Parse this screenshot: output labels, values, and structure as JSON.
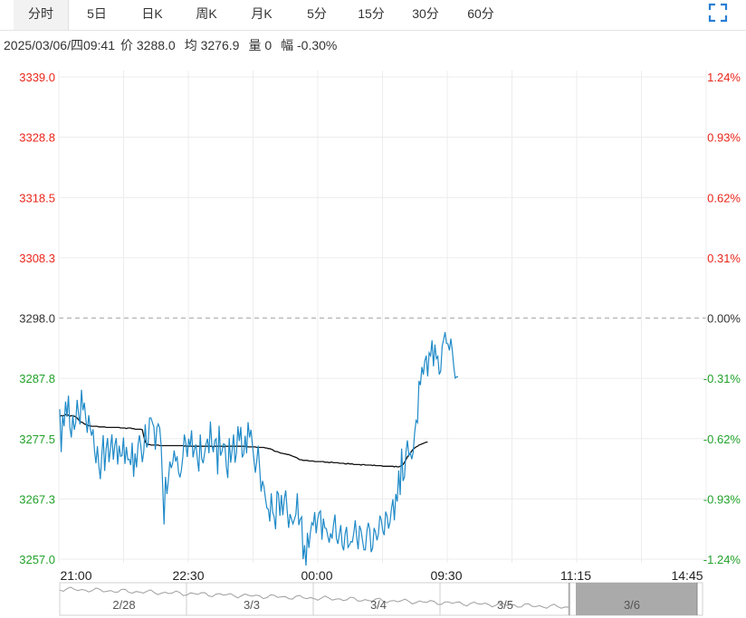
{
  "tabs": [
    {
      "label": "分时",
      "active": true
    },
    {
      "label": "5日"
    },
    {
      "label": "日K"
    },
    {
      "label": "周K"
    },
    {
      "label": "月K"
    },
    {
      "label": "5分"
    },
    {
      "label": "15分"
    },
    {
      "label": "30分"
    },
    {
      "label": "60分"
    }
  ],
  "fullscreen_icon": "expand-icon",
  "info": {
    "datetime": "2025/03/06/四09:41",
    "price": "价 3288.0",
    "avg": "均 3276.9",
    "volume": "量 0",
    "change": "幅 -0.30%"
  },
  "chart_data": {
    "type": "line",
    "prev_close": 3298.0,
    "ylim": [
      3257.0,
      3339.0
    ],
    "y_ticks": [
      "3339.0",
      "3328.8",
      "3318.5",
      "3308.3",
      "3298.0",
      "3287.8",
      "3277.5",
      "3267.3",
      "3257.0"
    ],
    "pct_ticks": [
      "1.24%",
      "0.93%",
      "0.62%",
      "0.31%",
      "0.00%",
      "-0.31%",
      "-0.62%",
      "-0.93%",
      "-1.24%"
    ],
    "x_ticks": [
      "21:00",
      "22:30",
      "00:00",
      "09:30",
      "11:15",
      "14:45"
    ],
    "session_segments": 10,
    "colors": {
      "price": "#1f8ac8",
      "avg": "#111111",
      "up": "#e8271b",
      "down": "#21a12a",
      "flat": "#333333"
    },
    "series": [
      {
        "name": "价",
        "values": [
          3282.5,
          3275.2,
          3281.4,
          3279.6,
          3283.8,
          3281.2,
          3284.8,
          3279.4,
          3277.7,
          3281.5,
          3279.0,
          3280.2,
          3284.1,
          3281.6,
          3279.9,
          3285.8,
          3282.3,
          3283.6,
          3280.8,
          3278.5,
          3281.5,
          3279.3,
          3278.0,
          3279.1,
          3275.4,
          3273.3,
          3276.2,
          3272.9,
          3270.6,
          3274.6,
          3278.1,
          3272.0,
          3275.7,
          3277.6,
          3273.5,
          3275.9,
          3278.2,
          3273.9,
          3276.4,
          3277.6,
          3273.1,
          3276.3,
          3274.5,
          3274.6,
          3277.7,
          3273.2,
          3276.1,
          3273.9,
          3274.0,
          3273.0,
          3276.8,
          3271.0,
          3275.0,
          3272.6,
          3276.3,
          3278.1,
          3276.2,
          3273.5,
          3275.3,
          3279.9,
          3276.0,
          3276.6,
          3281.0,
          3281.0,
          3280.2,
          3279.5,
          3275.6,
          3279.3,
          3280.0,
          3279.3,
          3276.3,
          3269.8,
          3262.9,
          3271.0,
          3268.1,
          3270.5,
          3273.6,
          3272.5,
          3273.4,
          3275.5,
          3273.6,
          3274.5,
          3271.8,
          3270.9,
          3272.2,
          3274.5,
          3278.2,
          3276.8,
          3274.4,
          3277.5,
          3276.1,
          3278.9,
          3274.3,
          3275.7,
          3276.5,
          3274.1,
          3271.9,
          3278.2,
          3274.1,
          3273.3,
          3275.0,
          3276.6,
          3277.5,
          3275.0,
          3280.4,
          3276.4,
          3275.2,
          3277.2,
          3277.5,
          3271.4,
          3279.7,
          3274.6,
          3275.3,
          3276.6,
          3276.5,
          3272.7,
          3270.8,
          3277.6,
          3273.4,
          3275.5,
          3278.2,
          3273.4,
          3275.1,
          3279.6,
          3277.1,
          3279.5,
          3274.3,
          3274.9,
          3278.0,
          3275.0,
          3280.3,
          3277.7,
          3279.0,
          3276.5,
          3274.1,
          3271.7,
          3273.7,
          3276.3,
          3272.5,
          3268.5,
          3270.3,
          3269.3,
          3267.3,
          3265.7,
          3265.5,
          3263.4,
          3268.2,
          3265.0,
          3264.2,
          3262.1,
          3268.6,
          3268.1,
          3264.4,
          3267.9,
          3264.5,
          3267.2,
          3268.7,
          3265.3,
          3262.3,
          3264.7,
          3263.8,
          3263.0,
          3263.8,
          3264.6,
          3268.2,
          3262.8,
          3263.8,
          3264.2,
          3257.0,
          3259.4,
          3255.9,
          3261.5,
          3258.9,
          3261.5,
          3263.2,
          3262.8,
          3265.0,
          3261.4,
          3263.7,
          3264.9,
          3265.2,
          3260.3,
          3263.9,
          3262.3,
          3262.2,
          3261.0,
          3259.8,
          3261.4,
          3260.5,
          3262.9,
          3264.6,
          3260.5,
          3259.6,
          3261.2,
          3262.8,
          3259.3,
          3258.5,
          3261.3,
          3262.5,
          3259.0,
          3259.4,
          3260.0,
          3259.9,
          3261.5,
          3263.6,
          3260.7,
          3258.7,
          3262.7,
          3261.9,
          3260.2,
          3258.6,
          3258.6,
          3261.7,
          3263.2,
          3262.1,
          3258.2,
          3258.9,
          3262.3,
          3261.6,
          3260.2,
          3261.3,
          3264.4,
          3263.7,
          3261.8,
          3261.1,
          3265.1,
          3264.3,
          3262.2,
          3263.3,
          3265.6,
          3267.2,
          3263.6,
          3268.1,
          3266.8,
          3272.1,
          3267.9,
          3275.8,
          3270.3,
          3271.0,
          3275.2,
          3277.2,
          3274.6,
          3275.1,
          3274.0,
          3275.2,
          3278.5,
          3280.6,
          3280.2,
          3287.3,
          3286.6,
          3289.7,
          3288.4,
          3290.7,
          3291.6,
          3288.1,
          3292.1,
          3291.6,
          3294.2,
          3289.8,
          3293.5,
          3291.1,
          3291.5,
          3288.4,
          3289.0,
          3293.2,
          3294.3,
          3295.6,
          3293.7,
          3293.6,
          3292.5,
          3294.5,
          3292.5,
          3289.8,
          3287.8,
          3288.0,
          3288.0
        ]
      },
      {
        "name": "均",
        "values": [
          3281.3,
          3281.4,
          3281.4,
          3281.4,
          3281.6,
          3281.5,
          3281.5,
          3281.3,
          3281.4,
          3281.4,
          3281.3,
          3281.2,
          3281.0,
          3280.7,
          3280.4,
          3280.3,
          3280.2,
          3280.0,
          3279.9,
          3279.8,
          3279.7,
          3279.7,
          3279.6,
          3279.6,
          3279.6,
          3279.6,
          3279.6,
          3279.5,
          3279.5,
          3279.5,
          3279.5,
          3279.5,
          3279.4,
          3279.4,
          3279.4,
          3279.4,
          3279.4,
          3279.4,
          3279.4,
          3279.4,
          3279.4,
          3279.4,
          3279.3,
          3279.3,
          3279.3,
          3279.3,
          3279.2,
          3279.3,
          3279.3,
          3279.3,
          3279.2,
          3279.2,
          3279.1,
          3279.1,
          3279.1,
          3279.1,
          3279.1,
          3279.0,
          3277.9,
          3277.0,
          3276.6,
          3276.5,
          3276.5,
          3276.4,
          3276.4,
          3276.4,
          3276.4,
          3276.4,
          3276.4,
          3276.3,
          3276.3,
          3276.3,
          3276.3,
          3276.3,
          3276.3,
          3276.3,
          3276.3,
          3276.3,
          3276.3,
          3276.3,
          3276.3,
          3276.3,
          3276.3,
          3276.3,
          3276.3,
          3276.3,
          3276.2,
          3276.3,
          3276.2,
          3276.2,
          3276.2,
          3276.2,
          3276.2,
          3276.2,
          3276.2,
          3276.2,
          3276.2,
          3276.2,
          3276.2,
          3276.2,
          3276.2,
          3276.2,
          3276.2,
          3276.2,
          3276.2,
          3276.2,
          3276.1,
          3276.2,
          3276.2,
          3276.2,
          3276.2,
          3276.2,
          3276.2,
          3276.1,
          3276.2,
          3276.2,
          3276.2,
          3276.2,
          3276.2,
          3276.2,
          3276.2,
          3276.2,
          3276.2,
          3276.2,
          3276.2,
          3276.2,
          3276.2,
          3276.2,
          3276.2,
          3276.2,
          3276.1,
          3276.1,
          3276.1,
          3276.1,
          3276.1,
          3276.1,
          3276.0,
          3276.0,
          3276.0,
          3276.0,
          3276.0,
          3276.0,
          3275.9,
          3275.9,
          3275.8,
          3275.8,
          3275.7,
          3275.6,
          3275.4,
          3275.3,
          3275.3,
          3275.2,
          3275.1,
          3275.0,
          3275.0,
          3274.9,
          3274.9,
          3274.8,
          3274.8,
          3274.7,
          3274.6,
          3274.5,
          3274.4,
          3274.3,
          3274.2,
          3274.0,
          3273.9,
          3273.9,
          3273.8,
          3273.8,
          3273.8,
          3273.8,
          3273.7,
          3273.7,
          3273.7,
          3273.7,
          3273.6,
          3273.6,
          3273.6,
          3273.6,
          3273.6,
          3273.6,
          3273.6,
          3273.5,
          3273.5,
          3273.5,
          3273.4,
          3273.5,
          3273.5,
          3273.4,
          3273.4,
          3273.4,
          3273.4,
          3273.3,
          3273.3,
          3273.3,
          3273.3,
          3273.2,
          3273.2,
          3273.3,
          3273.2,
          3273.2,
          3273.2,
          3273.1,
          3273.1,
          3273.1,
          3273.1,
          3273.1,
          3273.0,
          3273.1,
          3273.1,
          3273.0,
          3273.0,
          3273.0,
          3273.0,
          3273.0,
          3272.9,
          3273.0,
          3272.9,
          3272.9,
          3272.9,
          3272.9,
          3272.9,
          3272.8,
          3272.8,
          3272.8,
          3272.8,
          3272.8,
          3272.8,
          3272.8,
          3272.8,
          3272.7,
          3272.8,
          3272.7,
          3272.7,
          3272.8,
          3272.9,
          3273.1,
          3273.5,
          3273.9,
          3274.4,
          3274.7,
          3275.0,
          3275.4,
          3275.7,
          3275.9,
          3276.1,
          3276.2,
          3276.4,
          3276.5,
          3276.6,
          3276.7,
          3276.8,
          3276.9,
          3276.9
        ]
      }
    ],
    "navigator": {
      "labels": [
        "2/28",
        "3/3",
        "3/4",
        "3/5",
        "3/6"
      ]
    }
  }
}
